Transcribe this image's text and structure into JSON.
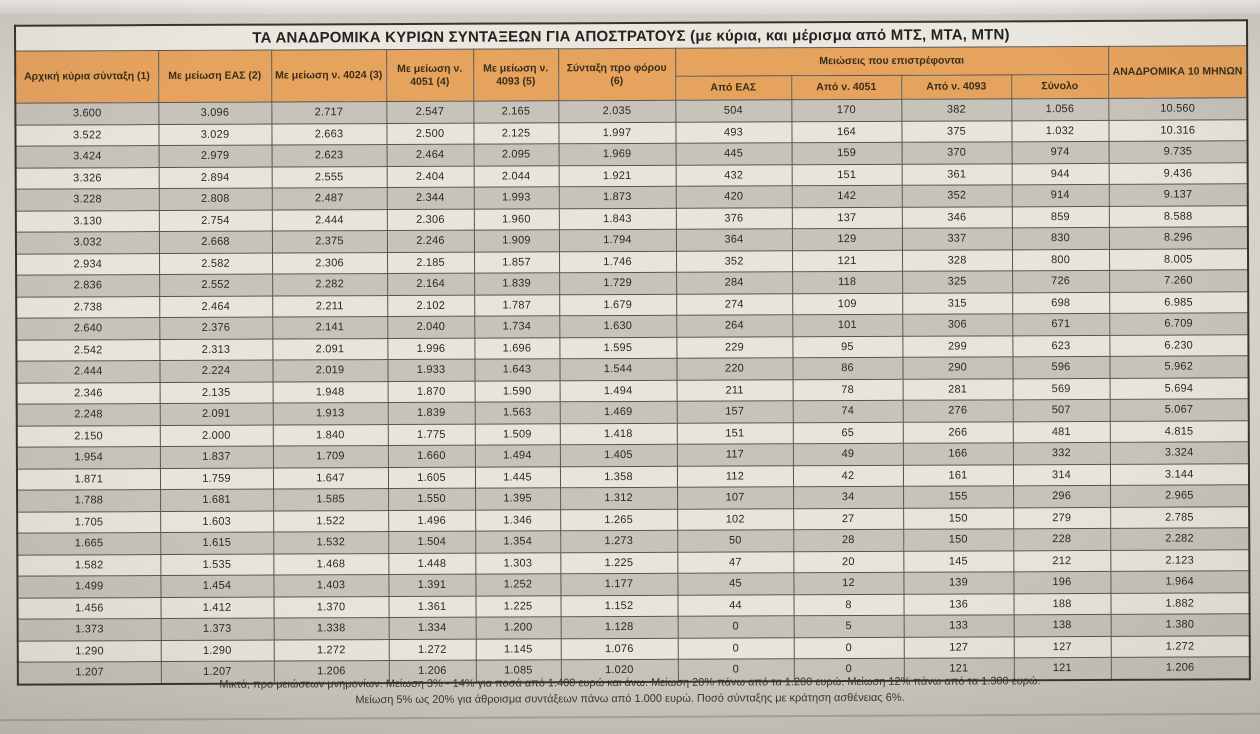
{
  "title": "ΤΑ ΑΝΑΔΡΟΜΙΚΑ ΚΥΡΙΩΝ ΣΥΝΤΑΞΕΩΝ ΓΙΑ ΑΠΟΣΤΡΑΤΟΥΣ (με κύρια, και μέρισμα από ΜΤΣ, ΜΤΑ, ΜΤΝ)",
  "table": {
    "headers": {
      "col1": "Αρχική κύρια σύνταξη (1)",
      "col2": "Με μείωση ΕΑΣ (2)",
      "col3": "Με μείωση ν. 4024 (3)",
      "col4": "Με μείωση ν. 4051 (4)",
      "col5": "Με μείωση ν. 4093 (5)",
      "col6": "Σύνταξη προ φόρου (6)",
      "group": "Μειώσεις που επιστρέφονται",
      "sub": [
        "Από ΕΑΣ",
        "Από ν. 4051",
        "Από ν. 4093",
        "Σύνολο"
      ],
      "col11": "ΑΝΑΔΡΟΜΙΚΑ 10 ΜΗΝΩΝ"
    },
    "rows": [
      [
        "3.600",
        "3.096",
        "2.717",
        "2.547",
        "2.165",
        "2.035",
        "504",
        "170",
        "382",
        "1.056",
        "10.560"
      ],
      [
        "3.522",
        "3.029",
        "2.663",
        "2.500",
        "2.125",
        "1.997",
        "493",
        "164",
        "375",
        "1.032",
        "10.316"
      ],
      [
        "3.424",
        "2.979",
        "2.623",
        "2.464",
        "2.095",
        "1.969",
        "445",
        "159",
        "370",
        "974",
        "9.735"
      ],
      [
        "3.326",
        "2.894",
        "2.555",
        "2.404",
        "2.044",
        "1.921",
        "432",
        "151",
        "361",
        "944",
        "9.436"
      ],
      [
        "3.228",
        "2.808",
        "2.487",
        "2.344",
        "1.993",
        "1.873",
        "420",
        "142",
        "352",
        "914",
        "9.137"
      ],
      [
        "3.130",
        "2.754",
        "2.444",
        "2.306",
        "1.960",
        "1.843",
        "376",
        "137",
        "346",
        "859",
        "8.588"
      ],
      [
        "3.032",
        "2.668",
        "2.375",
        "2.246",
        "1.909",
        "1.794",
        "364",
        "129",
        "337",
        "830",
        "8.296"
      ],
      [
        "2.934",
        "2.582",
        "2.306",
        "2.185",
        "1.857",
        "1.746",
        "352",
        "121",
        "328",
        "800",
        "8.005"
      ],
      [
        "2.836",
        "2.552",
        "2.282",
        "2.164",
        "1.839",
        "1.729",
        "284",
        "118",
        "325",
        "726",
        "7.260"
      ],
      [
        "2.738",
        "2.464",
        "2.211",
        "2.102",
        "1.787",
        "1.679",
        "274",
        "109",
        "315",
        "698",
        "6.985"
      ],
      [
        "2.640",
        "2.376",
        "2.141",
        "2.040",
        "1.734",
        "1.630",
        "264",
        "101",
        "306",
        "671",
        "6.709"
      ],
      [
        "2.542",
        "2.313",
        "2.091",
        "1.996",
        "1.696",
        "1.595",
        "229",
        "95",
        "299",
        "623",
        "6.230"
      ],
      [
        "2.444",
        "2.224",
        "2.019",
        "1.933",
        "1.643",
        "1.544",
        "220",
        "86",
        "290",
        "596",
        "5.962"
      ],
      [
        "2.346",
        "2.135",
        "1.948",
        "1.870",
        "1.590",
        "1.494",
        "211",
        "78",
        "281",
        "569",
        "5.694"
      ],
      [
        "2.248",
        "2.091",
        "1.913",
        "1.839",
        "1.563",
        "1.469",
        "157",
        "74",
        "276",
        "507",
        "5.067"
      ],
      [
        "2.150",
        "2.000",
        "1.840",
        "1.775",
        "1.509",
        "1.418",
        "151",
        "65",
        "266",
        "481",
        "4.815"
      ],
      [
        "1.954",
        "1.837",
        "1.709",
        "1.660",
        "1.494",
        "1.405",
        "117",
        "49",
        "166",
        "332",
        "3.324"
      ],
      [
        "1.871",
        "1.759",
        "1.647",
        "1.605",
        "1.445",
        "1.358",
        "112",
        "42",
        "161",
        "314",
        "3.144"
      ],
      [
        "1.788",
        "1.681",
        "1.585",
        "1.550",
        "1.395",
        "1.312",
        "107",
        "34",
        "155",
        "296",
        "2.965"
      ],
      [
        "1.705",
        "1.603",
        "1.522",
        "1.496",
        "1.346",
        "1.265",
        "102",
        "27",
        "150",
        "279",
        "2.785"
      ],
      [
        "1.665",
        "1.615",
        "1.532",
        "1.504",
        "1.354",
        "1.273",
        "50",
        "28",
        "150",
        "228",
        "2.282"
      ],
      [
        "1.582",
        "1.535",
        "1.468",
        "1.448",
        "1.303",
        "1.225",
        "47",
        "20",
        "145",
        "212",
        "2.123"
      ],
      [
        "1.499",
        "1.454",
        "1.403",
        "1.391",
        "1.252",
        "1.177",
        "45",
        "12",
        "139",
        "196",
        "1.964"
      ],
      [
        "1.456",
        "1.412",
        "1.370",
        "1.361",
        "1.225",
        "1.152",
        "44",
        "8",
        "136",
        "188",
        "1.882"
      ],
      [
        "1.373",
        "1.373",
        "1.338",
        "1.334",
        "1.200",
        "1.128",
        "0",
        "5",
        "133",
        "138",
        "1.380"
      ],
      [
        "1.290",
        "1.290",
        "1.272",
        "1.272",
        "1.145",
        "1.076",
        "0",
        "0",
        "127",
        "127",
        "1.272"
      ],
      [
        "1.207",
        "1.207",
        "1.206",
        "1.206",
        "1.085",
        "1.020",
        "0",
        "0",
        "121",
        "121",
        "1.206"
      ]
    ]
  },
  "footer": {
    "line1": "Μικτά, προ μειώσεων μνημονίων. Μείωση 3% - 14% για ποσά από 1.400 ευρώ και άνω. Μείωση 20% πάνω από τα 1.200 ευρώ. Μείωση 12% πάνω από τα 1.300 ευρώ.",
    "line2": "Μείωση 5% ως 20% για άθροισμα συντάξεων πάνω από 1.000 ευρώ. Ποσό σύνταξης με κράτηση ασθένειας 6%."
  },
  "colors": {
    "header_orange": "#e6a35e",
    "row_shaded": "#c7c3ba",
    "row_light": "#e7e4dd",
    "paper": "#d8d5ce",
    "border": "#58544d",
    "text": "#2c2925"
  }
}
